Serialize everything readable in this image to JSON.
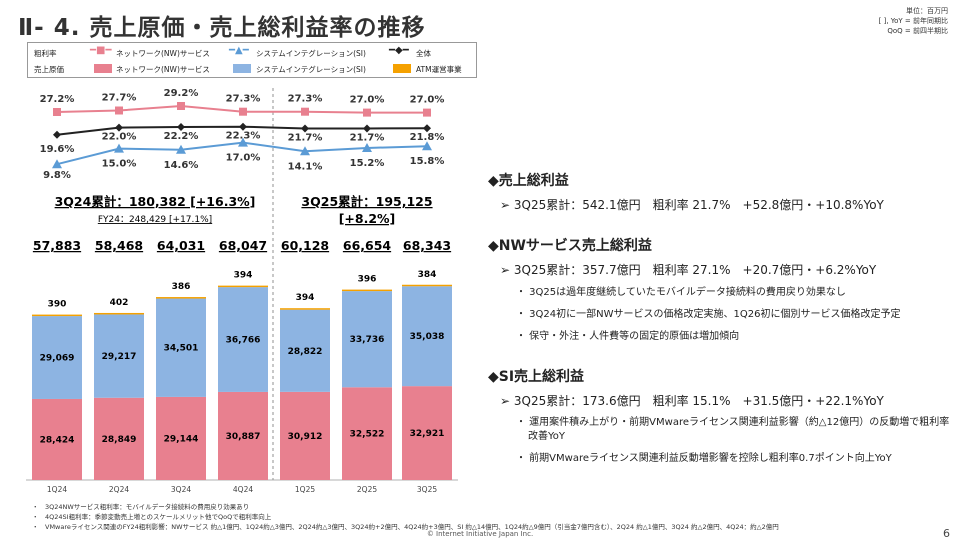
{
  "header": {
    "title": "Ⅱ- 4.  売上原価・売上総利益率の推移",
    "unit": "単位：百万円",
    "note1": "[ ], YoY = 前年同期比",
    "note2": "QoQ = 前四半期比"
  },
  "legend": {
    "rate_label": "粗利率",
    "cost_label": "売上原価",
    "nw": "ネットワーク(NW)サービス",
    "si": "システムインテグレーション(SI)",
    "total": "全体",
    "atm": "ATM運営事業"
  },
  "colors": {
    "nw": "#E8808F",
    "si_bar": "#8DB4E2",
    "si_line": "#5B9BD5",
    "total": "#222222",
    "atm": "#F5A100"
  },
  "summary": {
    "fy24_3q": "3Q24累計：180,382 [+16.3%]",
    "fy24": "FY24：248,429 [+17.1%]",
    "fy25_3q_a": "3Q25累計：195,125",
    "fy25_3q_b": "[+8.2%]"
  },
  "chart_data": {
    "type": "bar",
    "categories": [
      "1Q24",
      "2Q24",
      "3Q24",
      "4Q24",
      "1Q25",
      "2Q25",
      "3Q25"
    ],
    "totals": [
      "57,883",
      "58,468",
      "64,031",
      "68,047",
      "60,128",
      "66,654",
      "68,343"
    ],
    "series": [
      {
        "name": "ネットワーク(NW)サービス",
        "values": [
          28424,
          28849,
          29144,
          30887,
          30912,
          32522,
          32921
        ]
      },
      {
        "name": "システムインテグレーション(SI)",
        "values": [
          29069,
          29217,
          34501,
          36766,
          28822,
          33736,
          35038
        ]
      },
      {
        "name": "ATM運営事業",
        "values": [
          390,
          402,
          386,
          394,
          394,
          396,
          384
        ]
      }
    ],
    "rates": [
      {
        "name": "ネットワーク(NW)サービス",
        "values": [
          27.2,
          27.7,
          29.2,
          27.3,
          27.3,
          27.0,
          27.0
        ]
      },
      {
        "name": "全体",
        "values": [
          19.6,
          22.0,
          22.2,
          22.3,
          21.7,
          21.7,
          21.8
        ]
      },
      {
        "name": "システムインテグレーション(SI)",
        "values": [
          9.8,
          15.0,
          14.6,
          17.0,
          14.1,
          15.2,
          15.8
        ]
      }
    ]
  },
  "right": {
    "s1": {
      "title": "◆売上総利益",
      "line": "➢ 3Q25累計：542.1億円　粗利率 21.7%　+52.8億円・+10.8%YoY"
    },
    "s2": {
      "title": "◆NWサービス売上総利益",
      "line": "➢ 3Q25累計：357.7億円　粗利率 27.1%　+20.7億円・+6.2%YoY",
      "bullets": [
        "・ 3Q25は過年度継続していたモバイルデータ接続料の費用戻り効果なし",
        "・ 3Q24初に一部NWサービスの価格改定実施、1Q26初に個別サービス価格改定予定",
        "・ 保守・外注・人件費等の固定的原価は増加傾向"
      ]
    },
    "s3": {
      "title": "◆SI売上総利益",
      "line": "➢ 3Q25累計：173.6億円　粗利率 15.1%　+31.5億円・+22.1%YoY",
      "bullets": [
        "・ 運用案件積み上がり・前期VMwareライセンス関連利益影響（約△12億円）の反動増で粗利率改善YoY",
        "・ 前期VMwareライセンス関連利益反動増影響を控除し粗利率0.7ポイント向上YoY"
      ]
    }
  },
  "notes": [
    "・　3Q24NWサービス粗利率：モバイルデータ接続料の費用戻り効果あり",
    "・　4Q24SI粗利率：季節変動売上増とのスケールメリット他でQoQで粗利率向上",
    "・　VMwareライセンス関連のFY24粗利影響：NWサービス 約△1億円、1Q24約△3億円、2Q24約△3億円、3Q24約+2億円、4Q24約+3億円、SI 約△14億円、1Q24約△9億円（引当金7億円含む）、2Q24 約△1億円、3Q24 約△2億円、4Q24：約△2億円"
  ],
  "footer": {
    "copyright": "© Internet Initiative Japan Inc.",
    "page": "6"
  }
}
